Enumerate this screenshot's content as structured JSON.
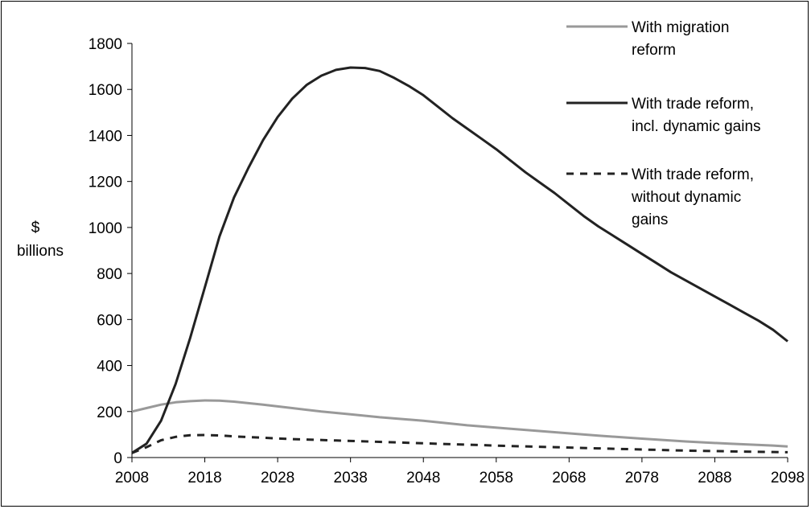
{
  "chart_data": {
    "type": "line",
    "title": "",
    "ylabel_lines": [
      "$",
      "billions"
    ],
    "xlabel": "",
    "xlim": [
      2008,
      2098
    ],
    "ylim": [
      0,
      1800
    ],
    "x_ticks": [
      2008,
      2018,
      2028,
      2038,
      2048,
      2058,
      2068,
      2078,
      2088,
      2098
    ],
    "y_ticks": [
      0,
      200,
      400,
      600,
      800,
      1000,
      1200,
      1400,
      1600,
      1800
    ],
    "grid": false,
    "legend_position": "top-right",
    "series": [
      {
        "name_lines": [
          "With migration",
          "reform"
        ],
        "color": "#999999",
        "dash": "solid",
        "x": [
          2008,
          2010,
          2012,
          2014,
          2016,
          2018,
          2020,
          2022,
          2026,
          2030,
          2034,
          2038,
          2042,
          2048,
          2054,
          2060,
          2066,
          2072,
          2078,
          2084,
          2090,
          2096,
          2098
        ],
        "y": [
          200,
          215,
          230,
          240,
          245,
          248,
          247,
          243,
          230,
          215,
          200,
          188,
          175,
          160,
          140,
          125,
          110,
          95,
          82,
          70,
          60,
          52,
          48
        ]
      },
      {
        "name_lines": [
          "With trade reform,",
          "incl. dynamic gains"
        ],
        "color": "#222222",
        "dash": "solid",
        "x": [
          2008,
          2010,
          2012,
          2014,
          2016,
          2018,
          2020,
          2022,
          2024,
          2026,
          2028,
          2030,
          2032,
          2034,
          2036,
          2038,
          2040,
          2042,
          2044,
          2046,
          2048,
          2050,
          2052,
          2054,
          2056,
          2058,
          2060,
          2062,
          2064,
          2066,
          2068,
          2070,
          2072,
          2074,
          2076,
          2078,
          2080,
          2082,
          2084,
          2086,
          2088,
          2090,
          2092,
          2094,
          2096,
          2098
        ],
        "y": [
          20,
          60,
          160,
          320,
          520,
          740,
          960,
          1130,
          1260,
          1380,
          1480,
          1560,
          1620,
          1660,
          1685,
          1695,
          1693,
          1680,
          1650,
          1615,
          1575,
          1525,
          1475,
          1430,
          1385,
          1340,
          1290,
          1240,
          1195,
          1150,
          1100,
          1050,
          1005,
          965,
          925,
          885,
          845,
          805,
          770,
          735,
          700,
          665,
          630,
          595,
          555,
          505
        ]
      },
      {
        "name_lines": [
          "With trade reform,",
          "without dynamic",
          "gains"
        ],
        "color": "#222222",
        "dash": "dashed",
        "x": [
          2008,
          2010,
          2012,
          2014,
          2016,
          2018,
          2020,
          2022,
          2026,
          2030,
          2036,
          2042,
          2048,
          2054,
          2060,
          2066,
          2072,
          2078,
          2084,
          2090,
          2096,
          2098
        ],
        "y": [
          20,
          45,
          75,
          90,
          97,
          98,
          96,
          92,
          86,
          80,
          74,
          68,
          62,
          56,
          50,
          45,
          40,
          35,
          30,
          27,
          24,
          23
        ]
      }
    ]
  }
}
